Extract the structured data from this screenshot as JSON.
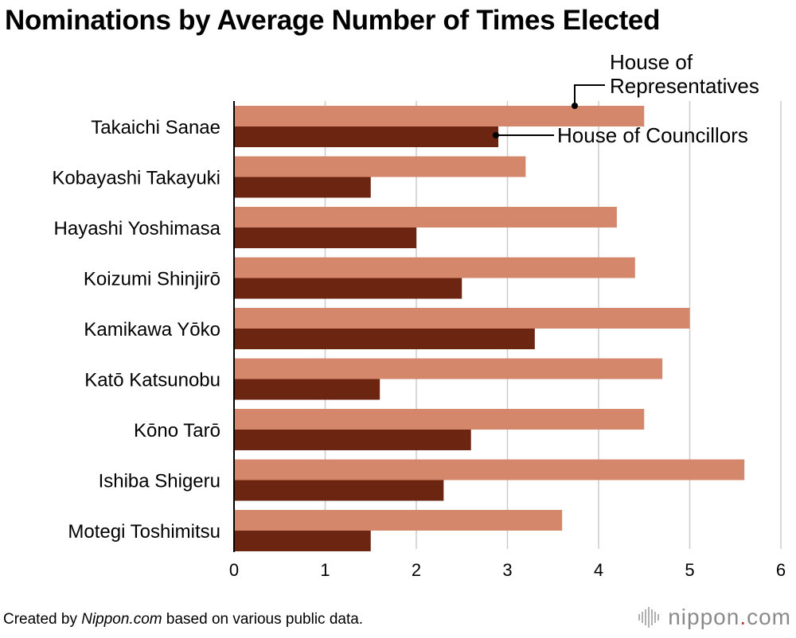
{
  "chart_data": {
    "type": "bar",
    "orientation": "horizontal",
    "title": "Nominations by Average Number of Times Elected",
    "categories": [
      "Takaichi Sanae",
      "Kobayashi Takayuki",
      "Hayashi Yoshimasa",
      "Koizumi Shinjirō",
      "Kamikawa Yōko",
      "Katō Katsunobu",
      "Kōno Tarō",
      "Ishiba Shigeru",
      "Motegi Toshimitsu"
    ],
    "series": [
      {
        "name": "House of Representatives",
        "label": [
          "House of",
          "Representatives"
        ],
        "color": "#d4876a",
        "values": [
          4.5,
          3.2,
          4.2,
          4.4,
          5.0,
          4.7,
          4.5,
          5.6,
          3.6
        ]
      },
      {
        "name": "House of Councillors",
        "label": [
          "House of Councillors"
        ],
        "color": "#6b2510",
        "values": [
          2.9,
          1.5,
          2.0,
          2.5,
          3.3,
          1.6,
          2.6,
          2.3,
          1.5
        ]
      }
    ],
    "xlim": [
      0,
      6
    ],
    "xticks": [
      0,
      1,
      2,
      3,
      4,
      5,
      6
    ],
    "xlabel": "",
    "ylabel": "",
    "grid": true,
    "legend": "annotated callouts at top-right"
  },
  "footer": {
    "prefix": "Created by ",
    "source": "Nippon.com",
    "suffix": " based on various public data."
  },
  "logo": {
    "text": "nippon",
    "dot": ".",
    "tld": "com"
  }
}
